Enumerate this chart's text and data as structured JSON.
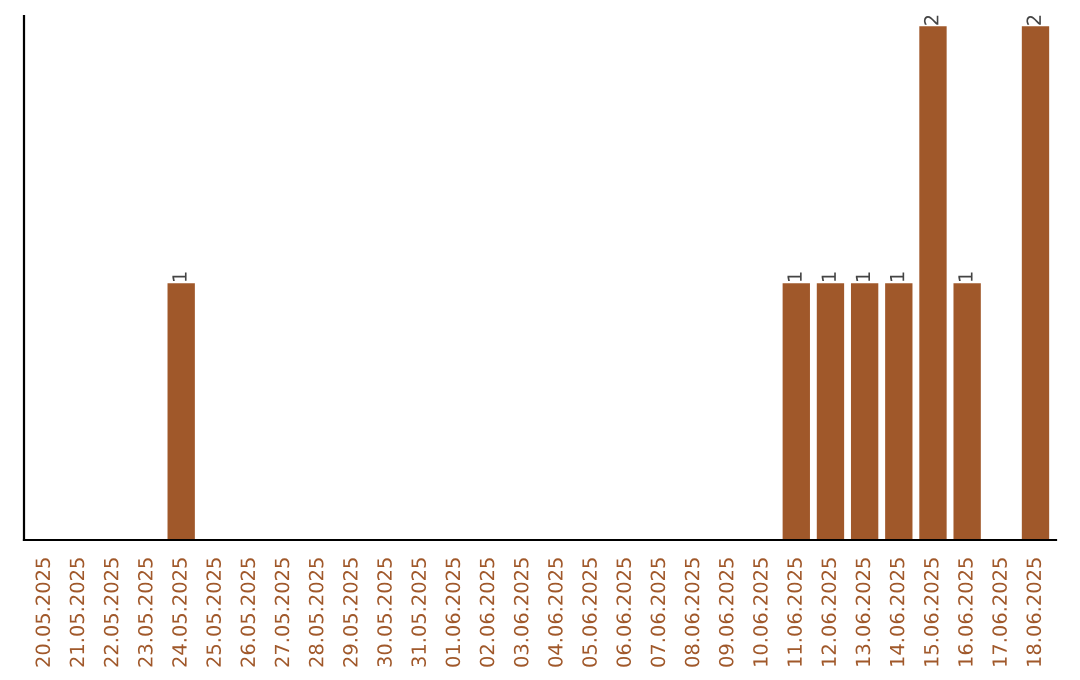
{
  "chart_data": {
    "type": "bar",
    "color": "#a0582a",
    "categories": [
      "20.05.2025",
      "21.05.2025",
      "22.05.2025",
      "23.05.2025",
      "24.05.2025",
      "25.05.2025",
      "26.05.2025",
      "27.05.2025",
      "28.05.2025",
      "29.05.2025",
      "30.05.2025",
      "31.05.2025",
      "01.06.2025",
      "02.06.2025",
      "03.06.2025",
      "04.06.2025",
      "05.06.2025",
      "06.06.2025",
      "07.06.2025",
      "08.06.2025",
      "09.06.2025",
      "10.06.2025",
      "11.06.2025",
      "12.06.2025",
      "13.06.2025",
      "14.06.2025",
      "15.06.2025",
      "16.06.2025",
      "17.06.2025",
      "18.06.2025"
    ],
    "values": [
      0,
      0,
      0,
      0,
      1,
      0,
      0,
      0,
      0,
      0,
      0,
      0,
      0,
      0,
      0,
      0,
      0,
      0,
      0,
      0,
      0,
      0,
      1,
      1,
      1,
      1,
      2,
      1,
      0,
      2
    ],
    "value_labels": [
      null,
      null,
      null,
      null,
      "1",
      null,
      null,
      null,
      null,
      null,
      null,
      null,
      null,
      null,
      null,
      null,
      null,
      null,
      null,
      null,
      null,
      null,
      "1",
      "1",
      "1",
      "1",
      "2",
      "1",
      null,
      "2"
    ],
    "grid": false,
    "legend": false
  }
}
